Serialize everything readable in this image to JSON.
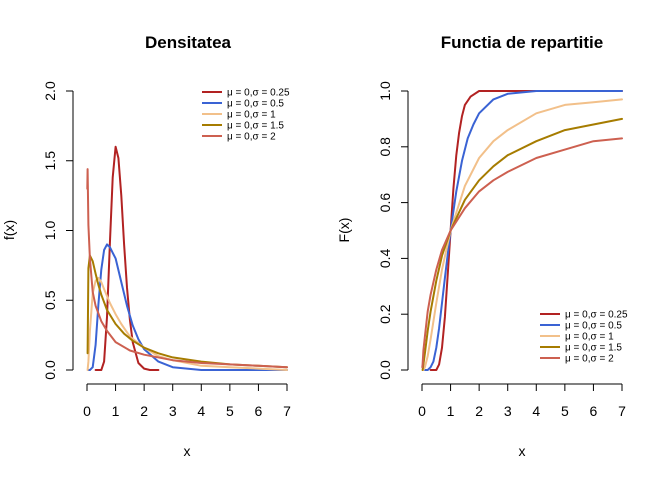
{
  "chart_data": [
    {
      "type": "line",
      "title": "Densitatea",
      "xlabel": "x",
      "ylabel": "f(x)",
      "xlim": [
        0,
        7
      ],
      "ylim": [
        0,
        2
      ],
      "xticks": [
        "0",
        "1",
        "2",
        "3",
        "4",
        "5",
        "6",
        "7"
      ],
      "yticks": [
        "0.0",
        "0.5",
        "1.0",
        "1.5",
        "2.0"
      ],
      "grid": false,
      "legend_position": "top-right",
      "series": [
        {
          "name": "μ = 0,σ = 0.25",
          "color": "#B22222",
          "sigma": 0.25,
          "x": [
            0.3,
            0.5,
            0.6,
            0.7,
            0.8,
            0.9,
            1.0,
            1.1,
            1.2,
            1.3,
            1.4,
            1.5,
            1.6,
            1.8,
            2.0,
            2.2,
            2.5
          ],
          "y": [
            0.0,
            0.0,
            0.06,
            0.38,
            0.91,
            1.38,
            1.6,
            1.52,
            1.25,
            0.9,
            0.59,
            0.36,
            0.2,
            0.05,
            0.01,
            0.0,
            0.0
          ]
        },
        {
          "name": "μ = 0,σ = 0.5",
          "color": "#3A63D4",
          "sigma": 0.5,
          "x": [
            0.05,
            0.1,
            0.2,
            0.3,
            0.4,
            0.5,
            0.6,
            0.7,
            0.8,
            0.9,
            1.0,
            1.2,
            1.4,
            1.6,
            1.8,
            2.0,
            2.5,
            3.0,
            3.5,
            4.0,
            5.0,
            6.0,
            7.0
          ],
          "y": [
            0.0,
            0.0,
            0.02,
            0.18,
            0.47,
            0.72,
            0.86,
            0.9,
            0.88,
            0.84,
            0.8,
            0.63,
            0.46,
            0.32,
            0.22,
            0.15,
            0.06,
            0.02,
            0.01,
            0.0,
            0.0,
            0.0,
            0.0
          ]
        },
        {
          "name": "μ = 0,σ = 1",
          "color": "#F2C08A",
          "sigma": 1.0,
          "x": [
            0.02,
            0.05,
            0.1,
            0.2,
            0.3,
            0.4,
            0.5,
            0.6,
            0.8,
            1.0,
            1.2,
            1.5,
            2.0,
            2.5,
            3.0,
            4.0,
            5.0,
            6.0,
            7.0
          ],
          "y": [
            0.0,
            0.06,
            0.28,
            0.55,
            0.64,
            0.66,
            0.63,
            0.58,
            0.48,
            0.4,
            0.33,
            0.24,
            0.16,
            0.1,
            0.07,
            0.03,
            0.02,
            0.01,
            0.0
          ]
        },
        {
          "name": "μ = 0,σ = 1.5",
          "color": "#A67C00",
          "sigma": 1.5,
          "x": [
            0.02,
            0.05,
            0.1,
            0.2,
            0.3,
            0.4,
            0.5,
            0.7,
            1.0,
            1.3,
            1.6,
            2.0,
            2.5,
            3.0,
            4.0,
            5.0,
            6.0,
            7.0
          ],
          "y": [
            0.12,
            0.73,
            0.82,
            0.78,
            0.69,
            0.61,
            0.54,
            0.43,
            0.33,
            0.26,
            0.21,
            0.16,
            0.12,
            0.09,
            0.06,
            0.04,
            0.03,
            0.02
          ]
        },
        {
          "name": "μ = 0,σ = 2",
          "color": "#CD6050",
          "sigma": 2.0,
          "x": [
            0.01,
            0.02,
            0.05,
            0.1,
            0.2,
            0.3,
            0.5,
            0.7,
            1.0,
            1.5,
            2.0,
            3.0,
            4.0,
            5.0,
            6.0,
            7.0
          ],
          "y": [
            1.3,
            1.44,
            1.04,
            0.8,
            0.56,
            0.46,
            0.35,
            0.28,
            0.2,
            0.14,
            0.11,
            0.07,
            0.05,
            0.04,
            0.03,
            0.02
          ]
        }
      ]
    },
    {
      "type": "line",
      "title": "Functia de repartitie",
      "xlabel": "x",
      "ylabel": "F(x)",
      "xlim": [
        0,
        7
      ],
      "ylim": [
        0,
        1
      ],
      "xticks": [
        "0",
        "1",
        "2",
        "3",
        "4",
        "5",
        "6",
        "7"
      ],
      "yticks": [
        "0.0",
        "0.2",
        "0.4",
        "0.6",
        "0.8",
        "1.0"
      ],
      "grid": false,
      "legend_position": "bottom-right",
      "series": [
        {
          "name": "μ = 0,σ = 0.25",
          "color": "#B22222",
          "sigma": 0.25,
          "x": [
            0.3,
            0.5,
            0.6,
            0.7,
            0.8,
            0.9,
            1.0,
            1.1,
            1.2,
            1.3,
            1.4,
            1.5,
            1.7,
            2.0,
            2.5,
            3.0,
            7.0
          ],
          "y": [
            0.0,
            0.0,
            0.02,
            0.08,
            0.19,
            0.34,
            0.5,
            0.65,
            0.77,
            0.85,
            0.91,
            0.95,
            0.98,
            1.0,
            1.0,
            1.0,
            1.0
          ]
        },
        {
          "name": "μ = 0,σ = 0.5",
          "color": "#3A63D4",
          "sigma": 0.5,
          "x": [
            0.1,
            0.2,
            0.3,
            0.4,
            0.5,
            0.6,
            0.7,
            0.8,
            1.0,
            1.2,
            1.4,
            1.6,
            1.8,
            2.0,
            2.5,
            3.0,
            4.0,
            5.0,
            6.0,
            7.0
          ],
          "y": [
            0.0,
            0.0,
            0.01,
            0.03,
            0.08,
            0.15,
            0.24,
            0.33,
            0.5,
            0.64,
            0.75,
            0.83,
            0.88,
            0.92,
            0.97,
            0.99,
            1.0,
            1.0,
            1.0,
            1.0
          ]
        },
        {
          "name": "μ = 0,σ = 1",
          "color": "#F2C08A",
          "sigma": 1.0,
          "x": [
            0.05,
            0.1,
            0.2,
            0.3,
            0.5,
            0.7,
            1.0,
            1.5,
            2.0,
            2.5,
            3.0,
            4.0,
            5.0,
            6.0,
            7.0
          ],
          "y": [
            0.0,
            0.01,
            0.05,
            0.11,
            0.24,
            0.36,
            0.5,
            0.66,
            0.76,
            0.82,
            0.86,
            0.92,
            0.95,
            0.96,
            0.97
          ]
        },
        {
          "name": "μ = 0,σ = 1.5",
          "color": "#A67C00",
          "sigma": 1.5,
          "x": [
            0.02,
            0.05,
            0.1,
            0.2,
            0.3,
            0.5,
            0.7,
            1.0,
            1.5,
            2.0,
            2.5,
            3.0,
            4.0,
            5.0,
            6.0,
            7.0
          ],
          "y": [
            0.0,
            0.02,
            0.06,
            0.14,
            0.21,
            0.32,
            0.41,
            0.5,
            0.61,
            0.68,
            0.73,
            0.77,
            0.82,
            0.86,
            0.88,
            0.9
          ]
        },
        {
          "name": "μ = 0,σ = 2",
          "color": "#CD6050",
          "sigma": 2.0,
          "x": [
            0.01,
            0.02,
            0.05,
            0.1,
            0.2,
            0.3,
            0.5,
            0.7,
            1.0,
            1.5,
            2.0,
            2.5,
            3.0,
            4.0,
            5.0,
            6.0,
            7.0
          ],
          "y": [
            0.01,
            0.02,
            0.07,
            0.12,
            0.21,
            0.27,
            0.36,
            0.43,
            0.5,
            0.58,
            0.64,
            0.68,
            0.71,
            0.76,
            0.79,
            0.82,
            0.83
          ]
        }
      ]
    }
  ]
}
